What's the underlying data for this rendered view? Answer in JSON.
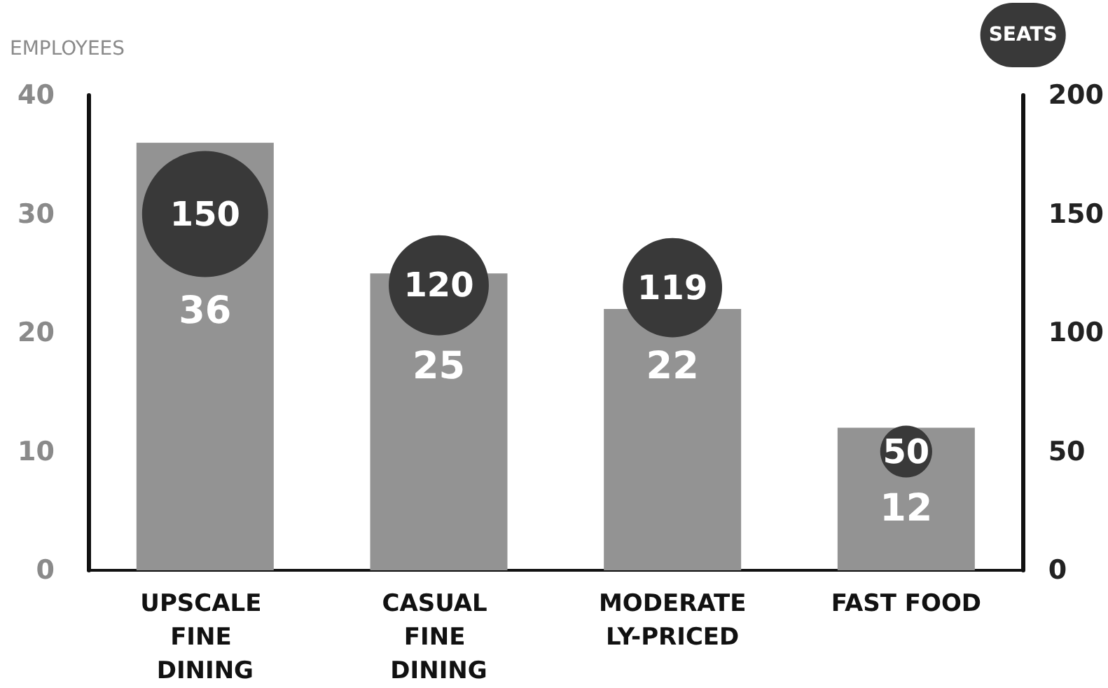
{
  "chart_data": {
    "type": "bar",
    "ylabel": "EMPLOYEES",
    "y2label": "SEATS",
    "categories": [
      "UPSCALE FINE DINING",
      "CASUAL FINE DINING",
      "MODERATELY-PRICED",
      "FAST FOOD"
    ],
    "series": [
      {
        "color": "#939393",
        "values": [
          36,
          25,
          22,
          12
        ]
      },
      {
        "type": "bubble",
        "axis": "y2",
        "color": "#393939",
        "values": [
          150,
          120,
          119,
          50
        ],
        "sizes": [
          1,
          0.63,
          0.62,
          0.17
        ]
      }
    ],
    "ylim": [
      0,
      40
    ],
    "yticks": [
      0,
      10,
      20,
      30,
      40
    ],
    "y2lim": [
      0,
      200
    ],
    "y2ticks": [
      0,
      50,
      100,
      150,
      200
    ],
    "data_labels": true,
    "grid": false
  }
}
